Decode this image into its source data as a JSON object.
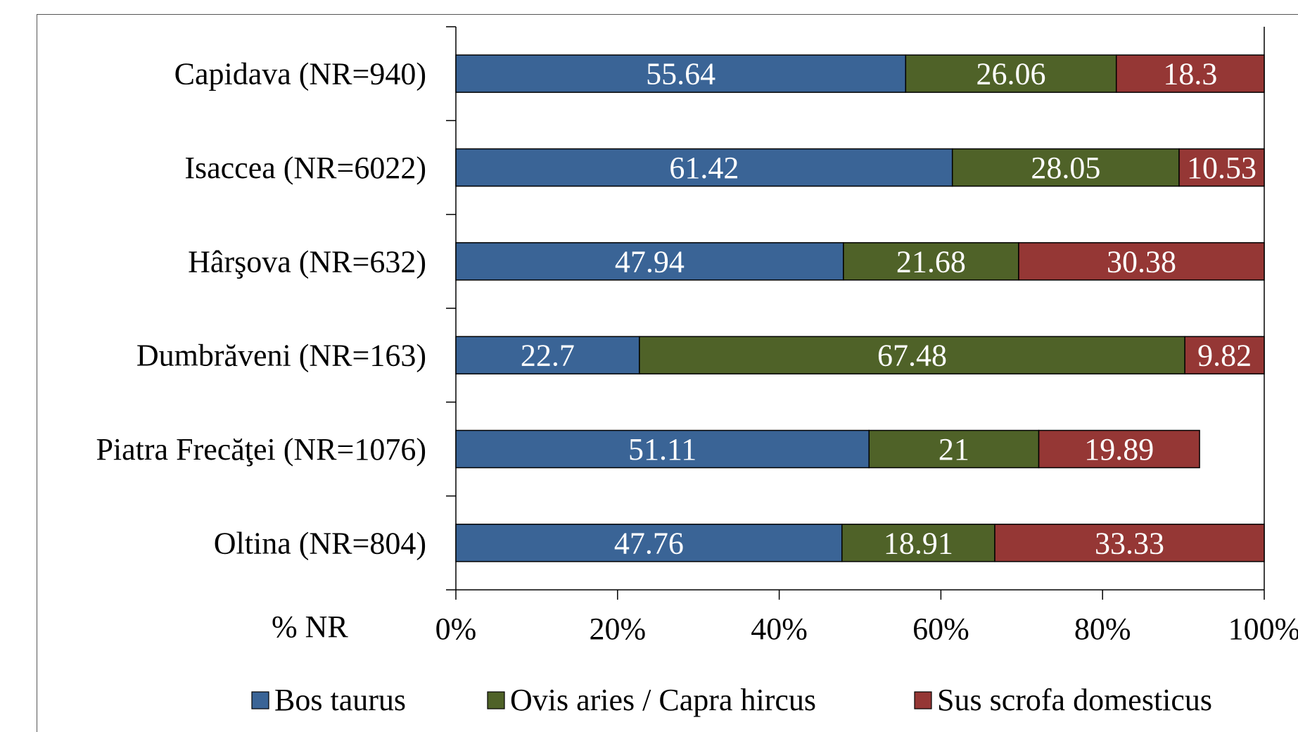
{
  "chart_data": {
    "type": "bar",
    "orientation": "horizontal",
    "stacked": "percent",
    "categories": [
      "Capidava (NR=940)",
      "Isaccea (NR=6022)",
      "Hârşova (NR=632)",
      "Dumbrăveni (NR=163)",
      "Piatra Frecăţei (NR=1076)",
      "Oltina (NR=804)"
    ],
    "series": [
      {
        "name": "Bos taurus",
        "color": "#3a6496",
        "values": [
          55.64,
          61.42,
          47.94,
          22.7,
          51.11,
          47.76
        ],
        "labels": [
          "55.64",
          "61.42",
          "47.94",
          "22.7",
          "51.11",
          "47.76"
        ]
      },
      {
        "name": "Ovis aries / Capra hircus",
        "color": "#4f6228",
        "values": [
          26.06,
          28.05,
          21.68,
          67.48,
          21,
          18.91
        ],
        "labels": [
          "26.06",
          "28.05",
          "21.68",
          "67.48",
          "21",
          "18.91"
        ]
      },
      {
        "name": "Sus scrofa domesticus",
        "color": "#953735",
        "values": [
          18.3,
          10.53,
          30.38,
          9.82,
          19.89,
          33.33
        ],
        "labels": [
          "18.3",
          "10.53",
          "30.38",
          "9.82",
          "19.89",
          "33.33"
        ]
      }
    ],
    "xlabel": "% NR",
    "xticks": [
      "0%",
      "20%",
      "40%",
      "60%",
      "80%",
      "100%"
    ],
    "xlim": [
      0,
      100
    ],
    "grid": false,
    "legend": "bottom"
  }
}
